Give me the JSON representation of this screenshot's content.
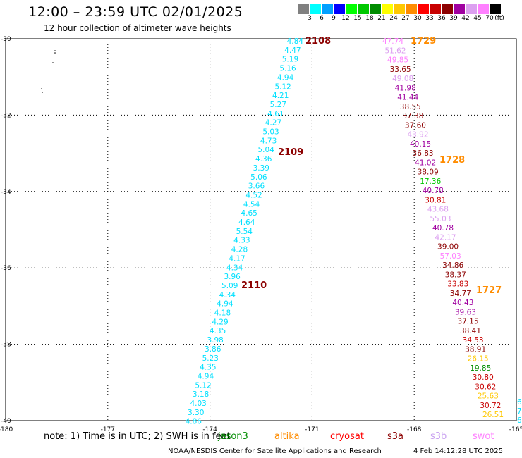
{
  "title": "12:00 – 23:59 UTC 02/01/2025",
  "subtitle": "12 hour collection of altimeter wave heights",
  "color_scale": {
    "labels": [
      "3",
      "6",
      "9",
      "12",
      "15",
      "18",
      "21",
      "24",
      "27",
      "30",
      "33",
      "36",
      "39",
      "42",
      "45",
      "70",
      "(ft)"
    ],
    "colors": [
      "#808080",
      "#00ffff",
      "#00a0ff",
      "#0000ff",
      "#00ff00",
      "#00c800",
      "#008c00",
      "#ffff00",
      "#ffc800",
      "#ff8c00",
      "#ff0000",
      "#c80000",
      "#8c0000",
      "#a000a0",
      "#dca0f0",
      "#ff80ff",
      "#000000"
    ]
  },
  "chart_data": {
    "type": "scatter",
    "x_ticks": [
      "-180",
      "-177",
      "-174",
      "-171",
      "-168",
      "-165"
    ],
    "y_ticks": [
      "-30",
      "-32",
      "-34",
      "-36",
      "-38",
      "-40"
    ],
    "xlim": [
      -180,
      -165
    ],
    "ylim": [
      -40,
      -30
    ],
    "grid": true,
    "pass_labels": [
      {
        "text": "2108",
        "color": "#8c0000"
      },
      {
        "text": "2109",
        "color": "#8c0000"
      },
      {
        "text": "2110",
        "color": "#8c0000"
      },
      {
        "text": "1729",
        "color": "#ff8c00"
      },
      {
        "text": "1728",
        "color": "#ff8c00"
      },
      {
        "text": "1727",
        "color": "#ff8c00"
      }
    ],
    "track_west": [
      "4.84",
      "4.47",
      "5.19",
      "5.16",
      "4.94",
      "5.12",
      "4.21",
      "5.27",
      "4.61",
      "4.27",
      "5.03",
      "4.73",
      "5.04",
      "4.36",
      "3.39",
      "5.06",
      "3.66",
      "4.52",
      "4.54",
      "4.65",
      "4.64",
      "5.54",
      "4.33",
      "4.28",
      "4.17",
      "4.34",
      "3.96",
      "5.09",
      "4.34",
      "4.94",
      "4.18",
      "4.29",
      "4.35",
      "3.98",
      "3.86",
      "5.23",
      "4.35",
      "4.94",
      "5.12",
      "3.18",
      "4.03",
      "3.30",
      "4.86"
    ],
    "track_east": [
      {
        "v": "47.74",
        "c": "#ff80ff"
      },
      {
        "v": "51.62",
        "c": "#dca0f0"
      },
      {
        "v": "49.85",
        "c": "#ff80ff"
      },
      {
        "v": "33.65",
        "c": "#8c0000"
      },
      {
        "v": "49.08",
        "c": "#dca0f0"
      },
      {
        "v": "41.98",
        "c": "#a000a0"
      },
      {
        "v": "41.44",
        "c": "#a000a0"
      },
      {
        "v": "38.55",
        "c": "#8c0000"
      },
      {
        "v": "37.38",
        "c": "#8c0000"
      },
      {
        "v": "37.60",
        "c": "#8c0000"
      },
      {
        "v": "43.92",
        "c": "#dca0f0"
      },
      {
        "v": "40.15",
        "c": "#a000a0"
      },
      {
        "v": "36.83",
        "c": "#8c0000"
      },
      {
        "v": "41.02",
        "c": "#a000a0"
      },
      {
        "v": "38.09",
        "c": "#8c0000"
      },
      {
        "v": "17.36",
        "c": "#00c800"
      },
      {
        "v": "40.78",
        "c": "#a000a0"
      },
      {
        "v": "30.81",
        "c": "#c80000"
      },
      {
        "v": "43.68",
        "c": "#dca0f0"
      },
      {
        "v": "55.03",
        "c": "#dca0f0"
      },
      {
        "v": "40.78",
        "c": "#a000a0"
      },
      {
        "v": "42.17",
        "c": "#dca0f0"
      },
      {
        "v": "39.00",
        "c": "#8c0000"
      },
      {
        "v": "57.03",
        "c": "#ff80ff"
      },
      {
        "v": "34.86",
        "c": "#8c0000"
      },
      {
        "v": "38.37",
        "c": "#8c0000"
      },
      {
        "v": "33.83",
        "c": "#c80000"
      },
      {
        "v": "34.77",
        "c": "#8c0000"
      },
      {
        "v": "40.43",
        "c": "#a000a0"
      },
      {
        "v": "39.63",
        "c": "#a000a0"
      },
      {
        "v": "37.15",
        "c": "#8c0000"
      },
      {
        "v": "38.41",
        "c": "#8c0000"
      },
      {
        "v": "34.53",
        "c": "#c80000"
      },
      {
        "v": "38.91",
        "c": "#8c0000"
      },
      {
        "v": "26.15",
        "c": "#ffc800"
      },
      {
        "v": "19.85",
        "c": "#008c00"
      },
      {
        "v": "30.80",
        "c": "#c80000"
      },
      {
        "v": "30.62",
        "c": "#c80000"
      },
      {
        "v": "25.63",
        "c": "#ffc800"
      },
      {
        "v": "30.72",
        "c": "#c80000"
      },
      {
        "v": "26.51",
        "c": "#ffc800"
      }
    ],
    "edge_values": [
      "6",
      "7",
      "6."
    ]
  },
  "note": "note: 1) Time is in UTC; 2) SWH is in feet",
  "legend": [
    {
      "name": "jason3",
      "color": "#008c00"
    },
    {
      "name": "altika",
      "color": "#ff8c00"
    },
    {
      "name": "cryosat",
      "color": "#ff0000"
    },
    {
      "name": "s3a",
      "color": "#8c0000"
    },
    {
      "name": "s3b",
      "color": "#c8a0f0"
    },
    {
      "name": "swot",
      "color": "#ff80ff"
    }
  ],
  "footer_org": "NOAA/NESDIS Center for Satellite Applications and Research",
  "footer_date": "4 Feb 14:12:28 UTC 2025"
}
